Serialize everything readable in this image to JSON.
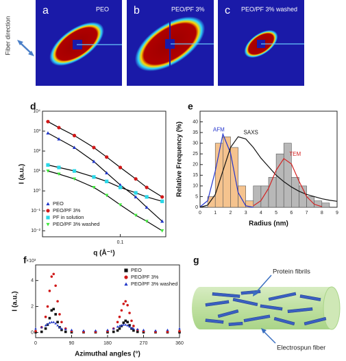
{
  "panels": [
    {
      "letter": "a",
      "label": "PEO"
    },
    {
      "letter": "b",
      "label": "PEO/PF 3%"
    },
    {
      "letter": "c",
      "label": "PEO/PF 3% washed"
    }
  ],
  "fiber_direction": "Fiber direction",
  "chart_data": [
    {
      "type": "scatter",
      "label": "d",
      "xscale": "log",
      "yscale": "log",
      "fit": true,
      "x_label": "q (Å⁻¹)",
      "y_label": "I (a.u.)",
      "x": [
        0.015,
        0.02,
        0.03,
        0.05,
        0.07,
        0.1,
        0.15,
        0.2,
        0.3
      ],
      "series": [
        {
          "name": "PEO",
          "color": "#1f35c8",
          "marker": "triangle",
          "values": [
            800,
            400,
            150,
            30,
            8,
            2,
            0.5,
            0.15,
            0.03
          ]
        },
        {
          "name": "PEO/PF 3%",
          "color": "#d01818",
          "marker": "circle",
          "values": [
            3000,
            1500,
            600,
            150,
            50,
            15,
            4,
            1.5,
            0.5
          ]
        },
        {
          "name": "PF in solution",
          "color": "#2ad8e8",
          "marker": "square",
          "values": [
            20,
            15,
            10,
            5,
            3,
            1.5,
            0.8,
            0.5,
            0.3
          ]
        },
        {
          "name": "PEO/PF 3% washed",
          "color": "#3ee83a",
          "marker": "triangle-down",
          "values": [
            10,
            7,
            4,
            1.5,
            0.6,
            0.2,
            0.06,
            0.03,
            0.01
          ]
        }
      ],
      "xlim": [
        0.013,
        0.33
      ],
      "xticks": [
        0.1
      ],
      "ylim": [
        0.005,
        10000
      ],
      "yticks": [
        {
          "value": 10000,
          "label": "10⁴"
        },
        {
          "value": 1000,
          "label": "10³"
        },
        {
          "value": 100,
          "label": "10²"
        },
        {
          "value": 10,
          "label": "10¹"
        },
        {
          "value": 1,
          "label": "10⁰"
        },
        {
          "value": 0.1,
          "label": "10⁻¹"
        },
        {
          "value": 0.01,
          "label": "10⁻²"
        }
      ],
      "legend": "lower left"
    },
    {
      "type": "histogram",
      "label": "e",
      "x_label": "Radius (nm)",
      "y_label": "Relative Frequency (%)",
      "histograms": [
        {
          "color": "#f5c38e",
          "bins": [
            0.5,
            1,
            1.5,
            2,
            2.5,
            3,
            3.5
          ],
          "counts": [
            5,
            30,
            33,
            28,
            10,
            3
          ]
        },
        {
          "color": "#b8b8b8",
          "bins": [
            3.5,
            4,
            4.5,
            5,
            5.5,
            6,
            6.5,
            7,
            7.5,
            8,
            8.5
          ],
          "counts": [
            10,
            10,
            14,
            25,
            30,
            14,
            10,
            5,
            3,
            2
          ]
        }
      ],
      "curves": [
        {
          "name": "AFM",
          "color": "#2233cc",
          "x": [
            0,
            0.5,
            1,
            1.5,
            2,
            2.5,
            3,
            3.5
          ],
          "values": [
            0.2,
            3.1,
            17,
            34.3,
            25.4,
            6.9,
            0.7,
            0
          ]
        },
        {
          "name": "SAXS",
          "color": "#111111",
          "x": [
            0,
            0.5,
            1,
            1.5,
            2,
            2.5,
            3,
            3.5,
            4,
            4.5,
            5,
            5.5,
            6,
            6.5,
            7,
            7.5,
            8,
            8.5,
            9
          ],
          "values": [
            0,
            1,
            6,
            17,
            28,
            33,
            32,
            28,
            23,
            19,
            15,
            12,
            9.5,
            7.5,
            6,
            5,
            4,
            3.3,
            2.8
          ]
        },
        {
          "name": "TEM",
          "color": "#d42020",
          "x": [
            3.5,
            4,
            4.5,
            5,
            5.5,
            6,
            6.5,
            7,
            7.5,
            8
          ],
          "values": [
            0.7,
            3.1,
            8.9,
            17.4,
            22.8,
            20.3,
            12.2,
            5,
            1.4,
            0.3
          ]
        }
      ],
      "xlim": [
        0,
        9
      ],
      "xticks": [
        0,
        1,
        2,
        3,
        4,
        5,
        6,
        7,
        8,
        9
      ],
      "ylim": [
        0,
        45
      ],
      "yticks": [
        0,
        5,
        10,
        15,
        20,
        25,
        30,
        35,
        40
      ]
    },
    {
      "type": "scatter",
      "label": "f",
      "fit": false,
      "x_label": "Azimuthal angles (°)",
      "y_label": "I (a.u.)",
      "y_multiplier": "×10³",
      "x": [
        0,
        15,
        25,
        30,
        35,
        40,
        45,
        50,
        55,
        60,
        65,
        75,
        90,
        120,
        150,
        180,
        195,
        205,
        210,
        215,
        220,
        225,
        230,
        235,
        240,
        245,
        255,
        270,
        300,
        330,
        360
      ],
      "series": [
        {
          "name": "PEO",
          "color": "#111111",
          "marker": "square",
          "values": [
            0.02,
            0.05,
            0.3,
            0.6,
            1.1,
            1.7,
            1.8,
            1.4,
            0.8,
            0.4,
            0.2,
            0.05,
            0.02,
            0.02,
            0.02,
            0.02,
            0.05,
            0.15,
            0.3,
            0.5,
            0.75,
            0.9,
            0.8,
            0.55,
            0.3,
            0.15,
            0.05,
            0.02,
            0.02,
            0.02,
            0.02
          ]
        },
        {
          "name": "PEO/PF 3%",
          "color": "#d01818",
          "marker": "circle",
          "values": [
            0.1,
            0.4,
            1.2,
            2.0,
            3.2,
            4.3,
            4.5,
            3.6,
            2.4,
            1.4,
            0.8,
            0.3,
            0.1,
            0.05,
            0.05,
            0.1,
            0.3,
            0.8,
            1.2,
            1.7,
            2.2,
            2.4,
            2.1,
            1.5,
            0.9,
            0.5,
            0.2,
            0.1,
            0.05,
            0.05,
            0.1
          ]
        },
        {
          "name": "PEO/PF 3% washed",
          "color": "#1f35c8",
          "marker": "triangle",
          "values": [
            0.3,
            0.4,
            0.55,
            0.65,
            0.75,
            0.8,
            0.8,
            0.7,
            0.55,
            0.4,
            0.3,
            0.25,
            0.2,
            0.15,
            0.15,
            0.2,
            0.3,
            0.45,
            0.5,
            0.55,
            0.6,
            0.6,
            0.55,
            0.45,
            0.35,
            0.3,
            0.25,
            0.2,
            0.15,
            0.2,
            0.3
          ]
        }
      ],
      "xlim": [
        0,
        360
      ],
      "xticks": [
        0,
        90,
        180,
        270,
        360
      ],
      "ylim": [
        -0.4,
        5.2
      ],
      "yticks": [
        0,
        2,
        4
      ],
      "legend": "upper right"
    }
  ],
  "diagram": {
    "letter": "g",
    "labels": [
      "Protein fibrils",
      "Electrospun fiber"
    ]
  }
}
